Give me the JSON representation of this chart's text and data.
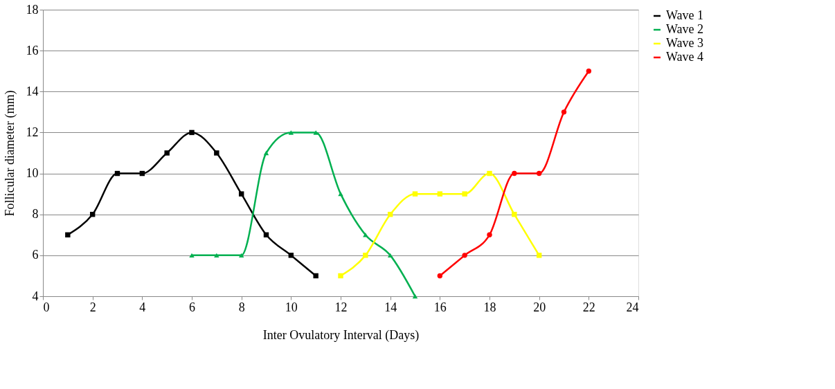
{
  "chart_data": {
    "type": "line",
    "xlabel": "Inter Ovulatory Interval (Days)",
    "ylabel": "Follicular diameter (mm)",
    "xlim": [
      0,
      24
    ],
    "xticks": [
      0,
      2,
      4,
      6,
      8,
      10,
      12,
      14,
      16,
      18,
      20,
      22,
      24
    ],
    "ylim": [
      4,
      18
    ],
    "yticks": [
      4,
      6,
      8,
      10,
      12,
      14,
      16,
      18
    ],
    "grid": "y",
    "legend": "right",
    "series": [
      {
        "name": "Wave 1",
        "color": "#000000",
        "marker": "square",
        "x": [
          1,
          2,
          3,
          4,
          5,
          6,
          7,
          8,
          9,
          10,
          11
        ],
        "values": [
          7,
          8,
          10,
          10,
          11,
          12,
          11,
          9,
          7,
          6,
          5
        ]
      },
      {
        "name": "Wave 2",
        "color": "#00b050",
        "marker": "triangle",
        "x": [
          6,
          7,
          8,
          9,
          10,
          11,
          12,
          13,
          14,
          15
        ],
        "values": [
          6,
          6,
          6,
          11,
          12,
          12,
          9,
          7,
          6,
          4
        ]
      },
      {
        "name": "Wave 3",
        "color": "#ffff00",
        "marker": "square",
        "x": [
          12,
          13,
          14,
          15,
          16,
          17,
          18,
          19,
          20
        ],
        "values": [
          5,
          6,
          8,
          9,
          9,
          9,
          10,
          8,
          6
        ]
      },
      {
        "name": "Wave 4",
        "color": "#ff0000",
        "marker": "circle",
        "x": [
          16,
          17,
          18,
          19,
          20,
          21,
          22
        ],
        "values": [
          5,
          6,
          7,
          10,
          10,
          13,
          15
        ]
      }
    ]
  }
}
